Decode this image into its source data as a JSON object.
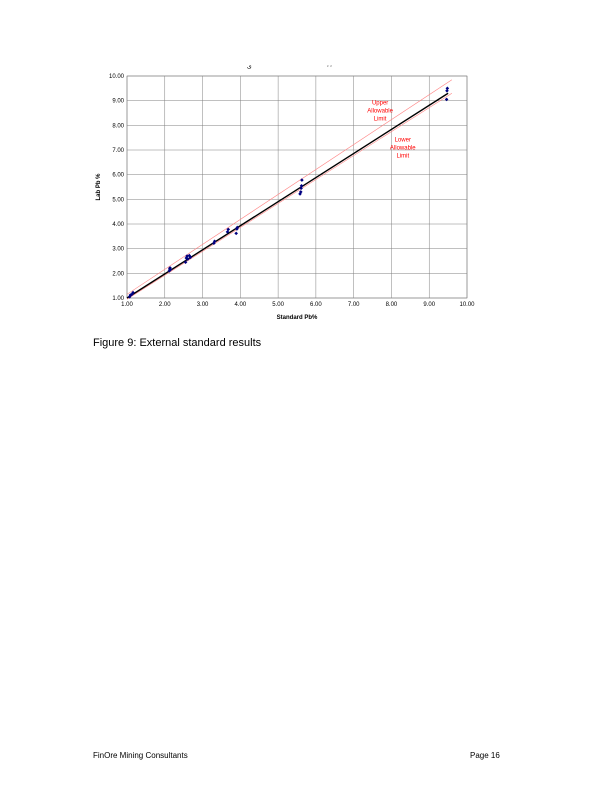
{
  "chart_data": {
    "type": "scatter",
    "title_fragments": [
      "ى",
      "ۥ ۥ"
    ],
    "xlabel": "Standard Pb%",
    "ylabel": "Lab Pb %",
    "xlim": [
      1.0,
      10.0
    ],
    "ylim": [
      1.0,
      10.0
    ],
    "x_ticks": [
      "1.00",
      "2.00",
      "3.00",
      "4.00",
      "5.00",
      "6.00",
      "7.00",
      "8.00",
      "9.00",
      "10.00"
    ],
    "y_ticks": [
      "1.00",
      "2.00",
      "3.00",
      "4.00",
      "5.00",
      "6.00",
      "7.00",
      "8.00",
      "9.00",
      "10.00"
    ],
    "grid": true,
    "colors": {
      "points": "#000080",
      "fit_line": "#000000",
      "limits": "#ff8080",
      "annotations": "#ff0000"
    },
    "points": [
      [
        1.07,
        1.05
      ],
      [
        1.09,
        1.12
      ],
      [
        1.13,
        1.15
      ],
      [
        1.16,
        1.22
      ],
      [
        2.12,
        2.1
      ],
      [
        2.13,
        2.18
      ],
      [
        2.14,
        2.22
      ],
      [
        2.15,
        2.15
      ],
      [
        2.55,
        2.45
      ],
      [
        2.57,
        2.62
      ],
      [
        2.59,
        2.7
      ],
      [
        2.61,
        2.58
      ],
      [
        2.65,
        2.72
      ],
      [
        2.68,
        2.65
      ],
      [
        3.3,
        3.22
      ],
      [
        3.32,
        3.3
      ],
      [
        3.66,
        3.68
      ],
      [
        3.68,
        3.78
      ],
      [
        3.89,
        3.62
      ],
      [
        3.91,
        3.8
      ],
      [
        3.92,
        3.86
      ],
      [
        5.58,
        5.22
      ],
      [
        5.6,
        5.3
      ],
      [
        5.61,
        5.45
      ],
      [
        5.62,
        5.55
      ],
      [
        5.63,
        5.78
      ],
      [
        9.46,
        9.05
      ],
      [
        9.47,
        9.4
      ],
      [
        9.48,
        9.5
      ]
    ],
    "fit_line": {
      "x": [
        1.0,
        9.5
      ],
      "y": [
        1.0,
        9.3
      ]
    },
    "upper_limit": {
      "x": [
        1.0,
        9.6
      ],
      "y": [
        1.15,
        9.85
      ]
    },
    "lower_limit": {
      "x": [
        1.0,
        9.6
      ],
      "y": [
        0.95,
        9.3
      ]
    },
    "annotations": [
      {
        "lines": [
          "Upper",
          "Allowable",
          "Limit"
        ],
        "x": 7.7,
        "y": 8.85
      },
      {
        "lines": [
          "Lower",
          "Allowable",
          "Limit"
        ],
        "x": 8.3,
        "y": 7.35
      }
    ]
  },
  "caption": "Figure 9: External standard results",
  "footer": {
    "company": "FinOre Mining Consultants",
    "page": "Page 16"
  }
}
